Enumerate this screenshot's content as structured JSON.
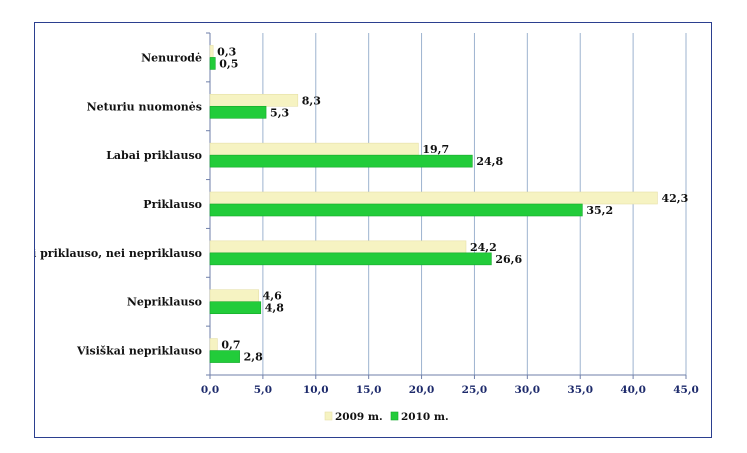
{
  "chart_data": {
    "type": "bar",
    "orientation": "horizontal",
    "categories": [
      "Nenurodė",
      "Neturiu nuomonės",
      "Labai priklauso",
      "Priklauso",
      "Nei priklauso, nei nepriklauso",
      "Nepriklauso",
      "Visiškai nepriklauso"
    ],
    "series": [
      {
        "name": "2009 m.",
        "color": "#f6f3c2",
        "values": [
          0.3,
          8.3,
          19.7,
          42.3,
          24.2,
          4.6,
          0.7
        ],
        "labels": [
          "0,3",
          "8,3",
          "19,7",
          "42,3",
          "24,2",
          "4,6",
          "0,7"
        ]
      },
      {
        "name": "2010 m.",
        "color": "#22cc3a",
        "values": [
          0.5,
          5.3,
          24.8,
          35.2,
          26.6,
          4.8,
          2.8
        ],
        "labels": [
          "0,5",
          "5,3",
          "24,8",
          "35,2",
          "26,6",
          "4,8",
          "2,8"
        ]
      }
    ],
    "xlim": [
      0,
      45
    ],
    "xticks": [
      0,
      5,
      10,
      15,
      20,
      25,
      30,
      35,
      40,
      45
    ],
    "xtick_labels": [
      "0,0",
      "5,0",
      "10,0",
      "15,0",
      "20,0",
      "25,0",
      "30,0",
      "35,0",
      "40,0",
      "45,0"
    ],
    "grid": true,
    "legend_position": "bottom",
    "title": "",
    "xlabel": "",
    "ylabel": ""
  }
}
